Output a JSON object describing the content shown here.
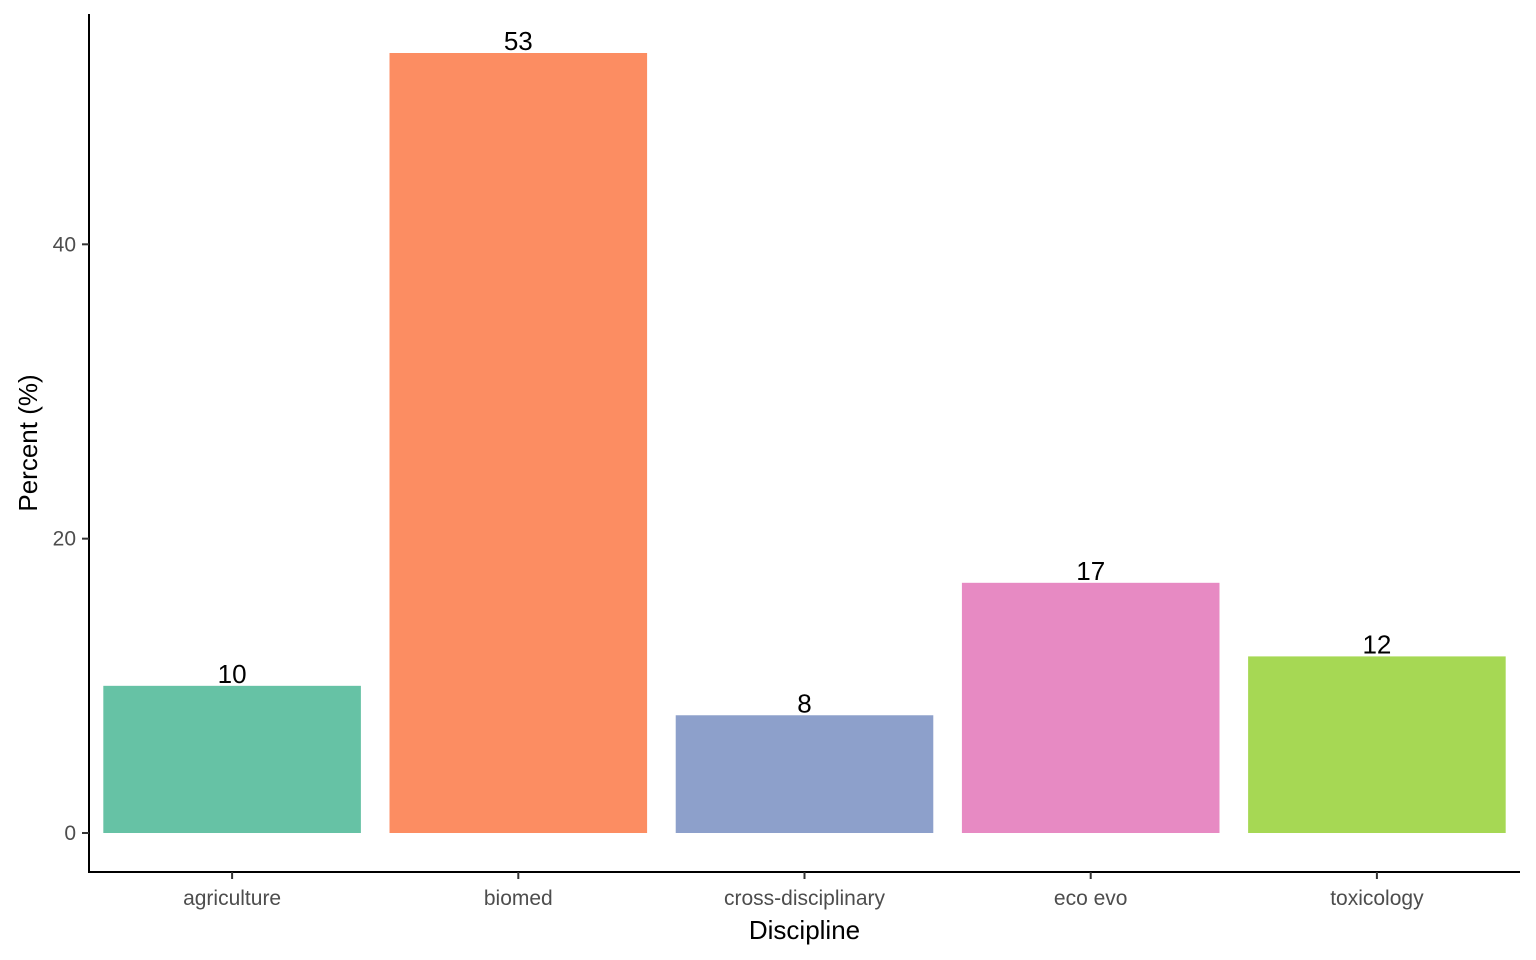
{
  "chart_data": {
    "type": "bar",
    "title": "",
    "xlabel": "Discipline",
    "ylabel": "Percent (%)",
    "categories": [
      "agriculture",
      "biomed",
      "cross-disciplinary",
      "eco evo",
      "toxicology"
    ],
    "values": [
      10,
      53,
      8,
      17,
      12
    ],
    "data_labels": [
      "10",
      "53",
      "8",
      "17",
      "12"
    ],
    "colors": [
      "#66c2a5",
      "#fc8d62",
      "#8da0cb",
      "#e78ac3",
      "#a6d854"
    ],
    "ylim": [
      -2.65,
      55.65
    ],
    "yticks": [
      0,
      20,
      40
    ],
    "ytick_labels": [
      "0",
      "20",
      "40"
    ],
    "grid": false,
    "legend": "none"
  }
}
